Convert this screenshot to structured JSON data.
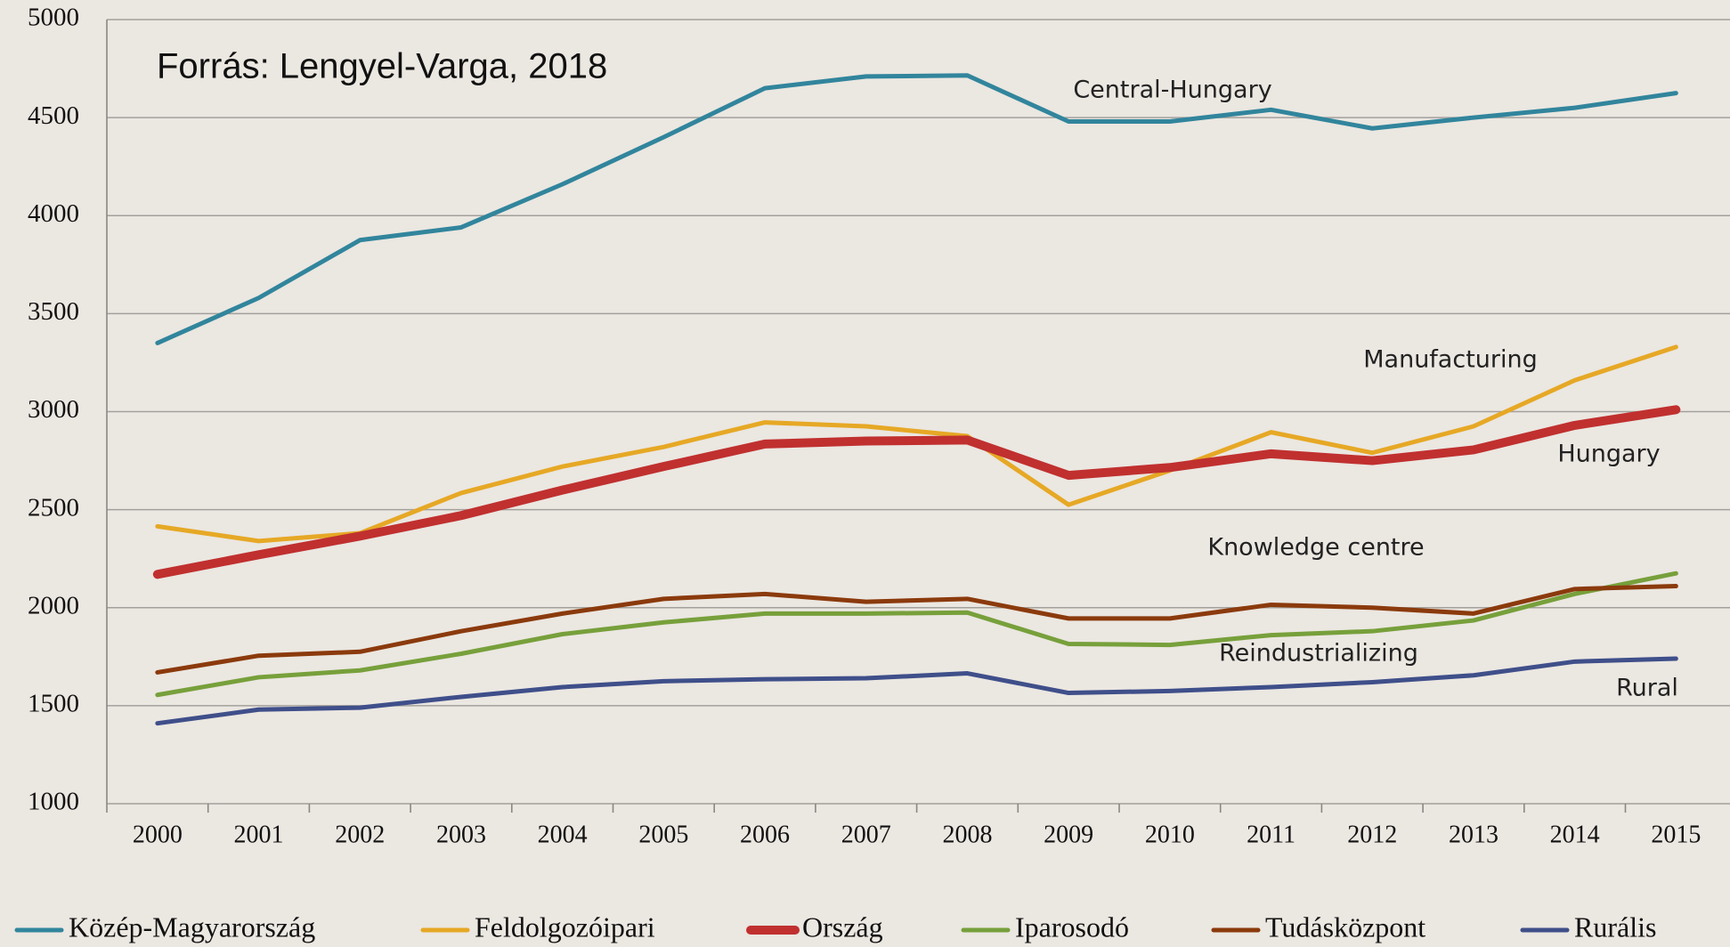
{
  "chart_data": {
    "type": "line",
    "title": "Forrás: Lengyel-Varga, 2018",
    "categories": [
      "2000",
      "2001",
      "2002",
      "2003",
      "2004",
      "2005",
      "2006",
      "2007",
      "2008",
      "2009",
      "2010",
      "2011",
      "2012",
      "2013",
      "2014",
      "2015"
    ],
    "series": [
      {
        "name": "Közép-Magyarország",
        "color": "#31859c",
        "values": [
          3350,
          3580,
          3875,
          3940,
          4160,
          4400,
          4650,
          4710,
          4715,
          4480,
          4480,
          4540,
          4445,
          4500,
          4550,
          4625
        ]
      },
      {
        "name": "Feldolgozóipari",
        "color": "#e6a825",
        "values": [
          2415,
          2340,
          2380,
          2585,
          2720,
          2820,
          2945,
          2925,
          2875,
          2525,
          2700,
          2895,
          2790,
          2925,
          3160,
          3330
        ]
      },
      {
        "name": "Ország",
        "color": "#c0302f",
        "values": [
          2170,
          2270,
          2365,
          2470,
          2600,
          2720,
          2835,
          2850,
          2855,
          2675,
          2715,
          2785,
          2750,
          2805,
          2930,
          3010
        ]
      },
      {
        "name": "Iparosodó",
        "color": "#77a03b",
        "values": [
          1555,
          1645,
          1680,
          1765,
          1865,
          1925,
          1970,
          1970,
          1975,
          1815,
          1810,
          1860,
          1880,
          1935,
          2070,
          2175
        ]
      },
      {
        "name": "Tudásközpont",
        "color": "#8b3a0c",
        "values": [
          1670,
          1755,
          1775,
          1880,
          1970,
          2045,
          2070,
          2030,
          2045,
          1945,
          1945,
          2015,
          2000,
          1970,
          2095,
          2110
        ]
      },
      {
        "name": "Rurális",
        "color": "#3f4f8a",
        "values": [
          1410,
          1480,
          1490,
          1545,
          1595,
          1625,
          1635,
          1640,
          1665,
          1565,
          1575,
          1595,
          1620,
          1655,
          1725,
          1740
        ]
      }
    ],
    "annotations": [
      "Central-Hungary",
      "Manufacturing",
      "Hungary",
      "Knowledge centre",
      "Reindustrializing",
      "Rural"
    ],
    "ylim": [
      1000,
      5000
    ],
    "yticks": [
      1000,
      1500,
      2000,
      2500,
      3000,
      3500,
      4000,
      4500,
      5000
    ],
    "grid": true,
    "legend": "bottom"
  }
}
